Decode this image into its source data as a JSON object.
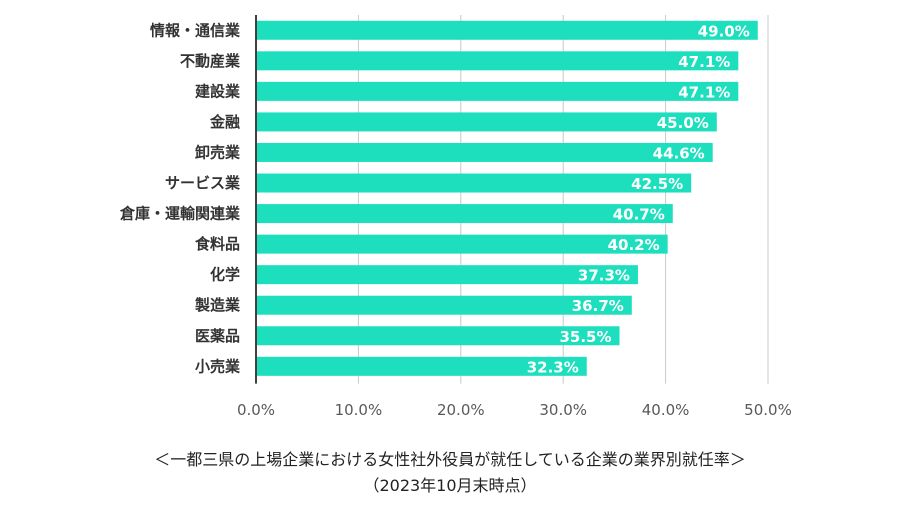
{
  "chart_data": {
    "type": "bar",
    "orientation": "horizontal",
    "categories": [
      "情報・通信業",
      "不動産業",
      "建設業",
      "金融",
      "卸売業",
      "サービス業",
      "倉庫・運輸関連業",
      "食料品",
      "化学",
      "製造業",
      "医薬品",
      "小売業"
    ],
    "values": [
      49.0,
      47.1,
      47.1,
      45.0,
      44.6,
      42.5,
      40.7,
      40.2,
      37.3,
      36.7,
      35.5,
      32.3
    ],
    "value_labels": [
      "49.0%",
      "47.1%",
      "47.1%",
      "45.0%",
      "44.6%",
      "42.5%",
      "40.7%",
      "40.2%",
      "37.3%",
      "36.7%",
      "35.5%",
      "32.3%"
    ],
    "x_ticks": [
      0,
      10,
      20,
      30,
      40,
      50
    ],
    "x_tick_labels": [
      "0.0%",
      "10.0%",
      "20.0%",
      "30.0%",
      "40.0%",
      "50.0%"
    ],
    "xlim": [
      0,
      50
    ],
    "grid": true,
    "legend": "none",
    "bar_color": "#1ddfbe",
    "title": ""
  },
  "caption": {
    "line1": "＜一都三県の上場企業における女性社外役員が就任している企業の業界別就任率＞",
    "line2": "（2023年10月末時点）"
  }
}
